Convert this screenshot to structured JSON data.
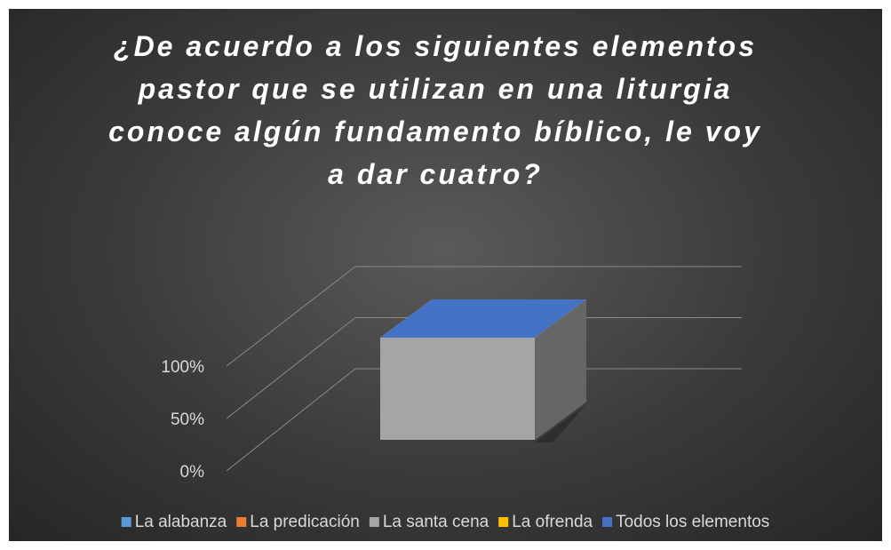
{
  "chart_data": {
    "type": "bar3d_stacked",
    "title": "¿De acuerdo a los siguientes elementos pastor que se utilizan en una liturgia conoce algún fundamento bíblico, le voy a dar cuatro?",
    "categories": [
      null
    ],
    "series": [
      {
        "name": "La alabanza",
        "color": "#5b9bd5",
        "values": [
          0
        ]
      },
      {
        "name": "La predicación",
        "color": "#ed7d31",
        "values": [
          0
        ]
      },
      {
        "name": "La santa cena",
        "color": "#a5a5a5",
        "values": [
          100
        ]
      },
      {
        "name": "La ofrenda",
        "color": "#ffc000",
        "values": [
          0
        ]
      },
      {
        "name": "Todos los elementos",
        "color": "#4472c4",
        "values": [
          0
        ]
      }
    ],
    "ylim": [
      0,
      100
    ],
    "yticks": [
      {
        "value": 0,
        "label": "0%"
      },
      {
        "value": 50,
        "label": "50%"
      },
      {
        "value": 100,
        "label": "100%"
      }
    ],
    "grid": true,
    "legend": "bottom"
  }
}
